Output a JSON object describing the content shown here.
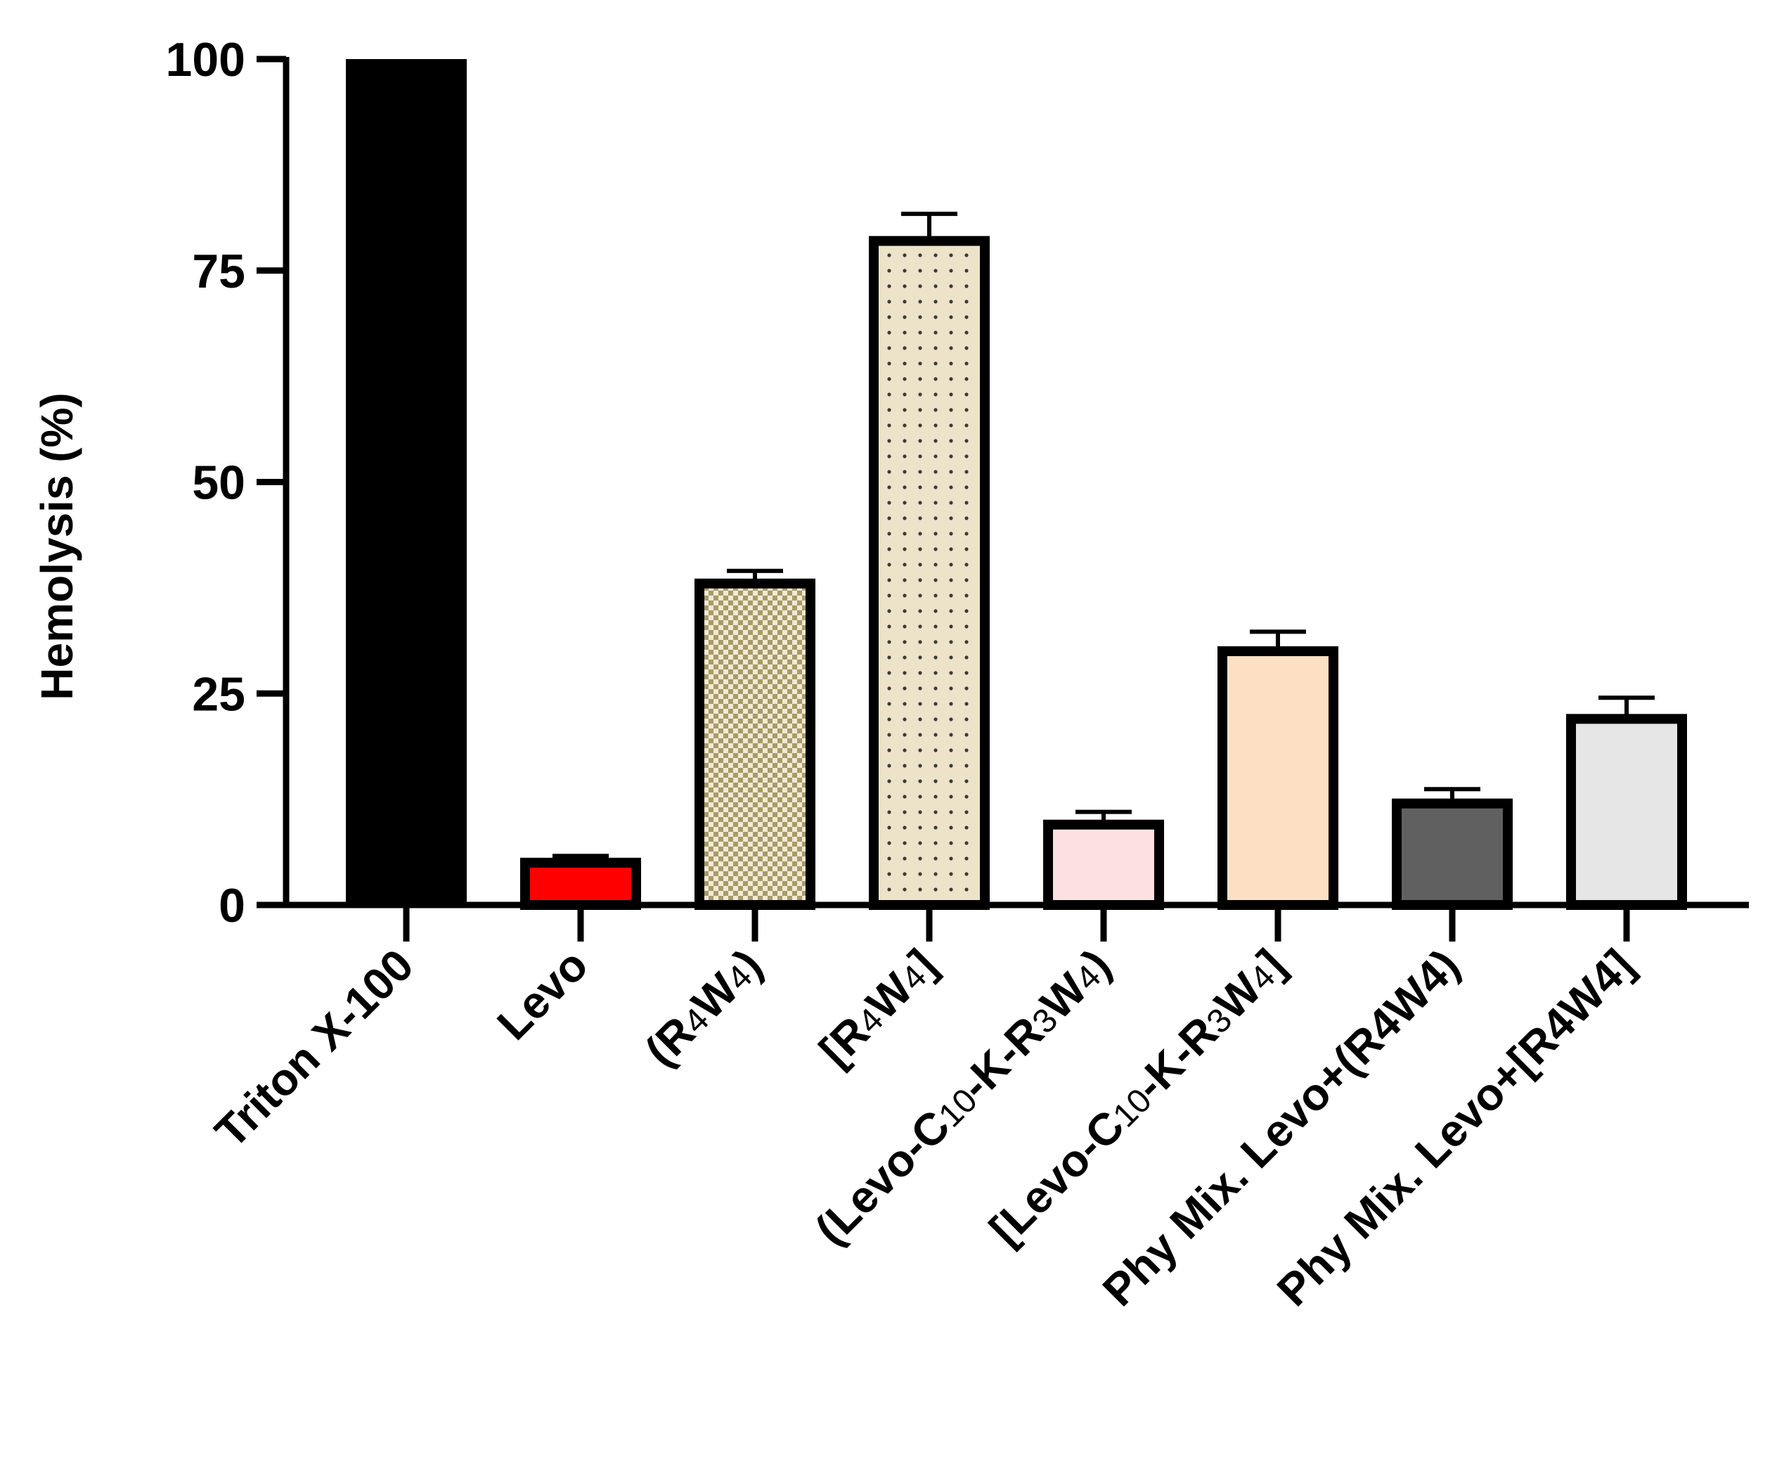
{
  "chart_data": {
    "type": "bar",
    "title": "",
    "xlabel": "",
    "ylabel": "Hemolysis (%)",
    "ylim": [
      0,
      100
    ],
    "yticks": [
      0,
      25,
      50,
      75,
      100
    ],
    "grid": false,
    "categories": [
      {
        "id": "triton",
        "parts": [
          {
            "t": "Triton X-100"
          }
        ]
      },
      {
        "id": "levo",
        "parts": [
          {
            "t": "Levo"
          }
        ]
      },
      {
        "id": "r4w4-linear",
        "parts": [
          {
            "t": "(R"
          },
          {
            "t": "4",
            "sub": true
          },
          {
            "t": "W"
          },
          {
            "t": "4",
            "sub": true
          },
          {
            "t": ")"
          }
        ]
      },
      {
        "id": "r4w4-cyclic",
        "parts": [
          {
            "t": "[R"
          },
          {
            "t": "4",
            "sub": true
          },
          {
            "t": "W"
          },
          {
            "t": "4",
            "sub": true
          },
          {
            "t": "]"
          }
        ]
      },
      {
        "id": "levo-c10-linear",
        "parts": [
          {
            "t": "(Levo-C"
          },
          {
            "t": "10",
            "sub": true
          },
          {
            "t": "-K-R"
          },
          {
            "t": "3",
            "sub": true
          },
          {
            "t": "W"
          },
          {
            "t": "4",
            "sub": true
          },
          {
            "t": ")"
          }
        ]
      },
      {
        "id": "levo-c10-cyclic",
        "parts": [
          {
            "t": "[Levo-C"
          },
          {
            "t": "10",
            "sub": true
          },
          {
            "t": "-K-R"
          },
          {
            "t": "3",
            "sub": true
          },
          {
            "t": "W"
          },
          {
            "t": "4",
            "sub": true
          },
          {
            "t": "]"
          }
        ]
      },
      {
        "id": "phy-mix-linear",
        "parts": [
          {
            "t": "Phy Mix. Levo+(R4W4)"
          }
        ]
      },
      {
        "id": "phy-mix-cyclic",
        "parts": [
          {
            "t": "Phy Mix. Levo+[R4W4]"
          }
        ]
      }
    ],
    "values": [
      100,
      5,
      38,
      78.5,
      9.5,
      30,
      12,
      22
    ],
    "errors": [
      0,
      0.8,
      1.5,
      3.2,
      1.5,
      2.3,
      1.7,
      2.5
    ],
    "fills": [
      "#000000",
      "#ff0000",
      "checker",
      "dots",
      "#fde0e0",
      "#fde0c4",
      "#606060",
      "#e6e6e6"
    ],
    "colors": {
      "axis": "#000000",
      "checker_a": "#a89a6a",
      "checker_b": "#f2ead2",
      "dots_bg": "#ece3c8",
      "dots_fg": "#3a3a3a"
    }
  }
}
